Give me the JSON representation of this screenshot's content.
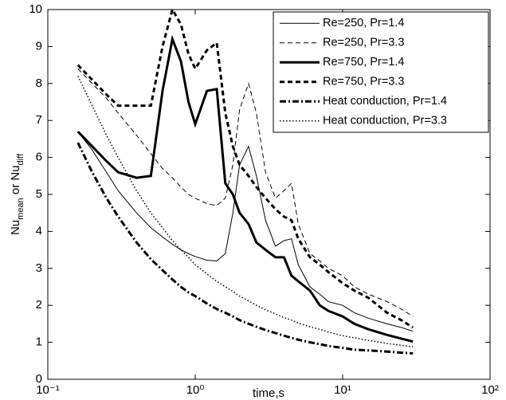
{
  "chart_data": {
    "type": "line",
    "x_label": "time,s",
    "y_label": [
      {
        "text": "Nu"
      },
      {
        "text": "mean",
        "sub": true
      },
      {
        "text": " or Nu"
      },
      {
        "text": "diff",
        "sub": true
      }
    ],
    "x_scale": "log",
    "xlim": [
      0.1,
      100
    ],
    "xticks": [
      {
        "value": 0.1,
        "label": "10⁻¹"
      },
      {
        "value": 1,
        "label": "10⁰"
      },
      {
        "value": 10,
        "label": "10¹"
      },
      {
        "value": 100,
        "label": "10²"
      }
    ],
    "ylim": [
      0,
      10
    ],
    "yticks": [
      0,
      1,
      2,
      3,
      4,
      5,
      6,
      7,
      8,
      9,
      10
    ],
    "legend": "upper right",
    "x": [
      0.16,
      0.2,
      0.25,
      0.3,
      0.4,
      0.5,
      0.6,
      0.7,
      0.8,
      0.9,
      1.0,
      1.2,
      1.4,
      1.6,
      1.8,
      2.0,
      2.3,
      2.6,
      3,
      3.5,
      4,
      4.5,
      5,
      6,
      7,
      8,
      10,
      12,
      15,
      20,
      25,
      30
    ],
    "series": [
      {
        "name": "Re=250, Pr=1.4",
        "color": "#000000",
        "style": "solid",
        "linewidth": 1,
        "values": [
          6.7,
          6.2,
          5.6,
          5.1,
          4.5,
          4.1,
          3.85,
          3.65,
          3.5,
          3.4,
          3.32,
          3.22,
          3.2,
          3.4,
          4.5,
          5.8,
          6.3,
          5.5,
          4.3,
          3.6,
          3.75,
          3.8,
          3.1,
          2.5,
          2.3,
          2.1,
          2.0,
          1.8,
          1.65,
          1.5,
          1.4,
          1.3
        ]
      },
      {
        "name": "Re=250, Pr=3.3",
        "color": "#000000",
        "style": "dashed",
        "linewidth": 1,
        "values": [
          8.4,
          8.0,
          7.6,
          7.2,
          6.6,
          6.1,
          5.7,
          5.45,
          5.2,
          5.0,
          4.9,
          4.75,
          4.7,
          4.9,
          5.8,
          7.3,
          8.0,
          7.2,
          5.6,
          4.9,
          5.1,
          5.3,
          4.2,
          3.4,
          3.2,
          3.0,
          2.8,
          2.5,
          2.3,
          2.1,
          1.9,
          1.7
        ]
      },
      {
        "name": "Re=750, Pr=1.4",
        "color": "#000000",
        "style": "solid",
        "linewidth": 3,
        "values": [
          6.7,
          6.3,
          5.9,
          5.6,
          5.45,
          5.5,
          7.8,
          9.2,
          8.6,
          7.5,
          6.9,
          7.8,
          7.85,
          5.3,
          5.0,
          4.5,
          4.2,
          3.7,
          3.5,
          3.3,
          3.3,
          2.8,
          2.65,
          2.4,
          2.0,
          1.85,
          1.7,
          1.5,
          1.35,
          1.2,
          1.1,
          1.02
        ]
      },
      {
        "name": "Re=750, Pr=3.3",
        "color": "#000000",
        "style": "dashed",
        "linewidth": 3,
        "values": [
          8.5,
          8.1,
          7.7,
          7.4,
          7.4,
          7.4,
          9.0,
          10.0,
          9.6,
          8.8,
          8.4,
          8.9,
          9.1,
          7.2,
          6.3,
          5.8,
          5.5,
          5.2,
          4.9,
          4.6,
          4.4,
          4.3,
          3.8,
          3.3,
          3.1,
          2.9,
          2.6,
          2.4,
          2.2,
          1.8,
          1.6,
          1.4
        ]
      },
      {
        "name": "Heat conduction, Pr=1.4",
        "color": "#000000",
        "style": "dashdot",
        "linewidth": 3,
        "values": [
          6.4,
          5.6,
          4.9,
          4.4,
          3.7,
          3.25,
          2.95,
          2.7,
          2.5,
          2.35,
          2.25,
          2.05,
          1.9,
          1.8,
          1.7,
          1.6,
          1.5,
          1.42,
          1.33,
          1.25,
          1.18,
          1.12,
          1.07,
          1.0,
          0.95,
          0.9,
          0.85,
          0.8,
          0.78,
          0.75,
          0.72,
          0.7
        ]
      },
      {
        "name": "Heat conduction, Pr=3.3",
        "color": "#000000",
        "style": "dotted",
        "linewidth": 1.5,
        "values": [
          8.2,
          7.4,
          6.6,
          6.0,
          5.1,
          4.5,
          4.1,
          3.75,
          3.5,
          3.3,
          3.1,
          2.85,
          2.65,
          2.5,
          2.38,
          2.25,
          2.12,
          2.0,
          1.88,
          1.77,
          1.67,
          1.6,
          1.52,
          1.42,
          1.35,
          1.28,
          1.18,
          1.12,
          1.05,
          0.97,
          0.92,
          0.88
        ]
      }
    ]
  }
}
